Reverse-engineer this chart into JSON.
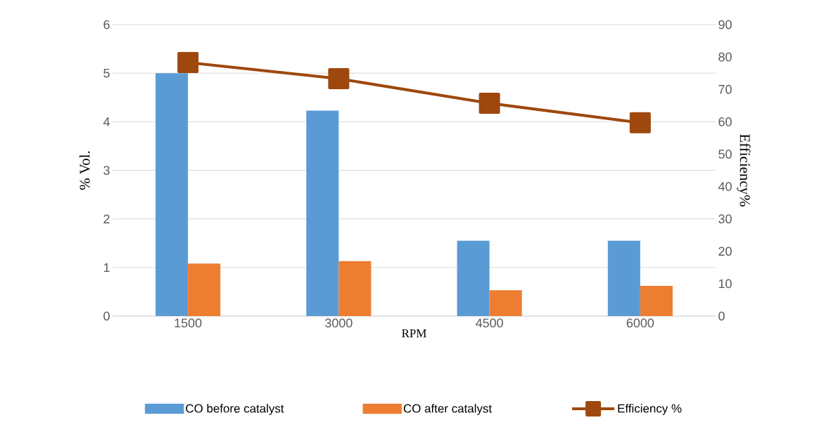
{
  "chart_data": {
    "type": "bar",
    "xlabel": "RPM",
    "ylabel": "% Vol.",
    "y2label": "Efficiency%",
    "categories": [
      "1500",
      "3000",
      "4500",
      "6000"
    ],
    "series": [
      {
        "name": "CO before catalyst",
        "color": "#5b9bd5",
        "values": [
          5.0,
          4.23,
          1.55,
          1.55
        ]
      },
      {
        "name": "CO after catalyst",
        "color": "#ed7d31",
        "values": [
          1.08,
          1.13,
          0.53,
          0.62
        ]
      },
      {
        "name": "Efficiency %",
        "type": "line",
        "axis": "y2",
        "color": "#9e480e",
        "values": [
          78.3,
          73.3,
          65.7,
          59.7
        ]
      }
    ],
    "ylim": [
      0,
      6
    ],
    "yticks": [
      0,
      1,
      2,
      3,
      4,
      5,
      6
    ],
    "y2lim": [
      0,
      90
    ],
    "y2ticks": [
      0,
      10,
      20,
      30,
      40,
      50,
      60,
      70,
      80,
      90
    ],
    "grid": "y",
    "legend": "bottom",
    "marker": "square"
  }
}
